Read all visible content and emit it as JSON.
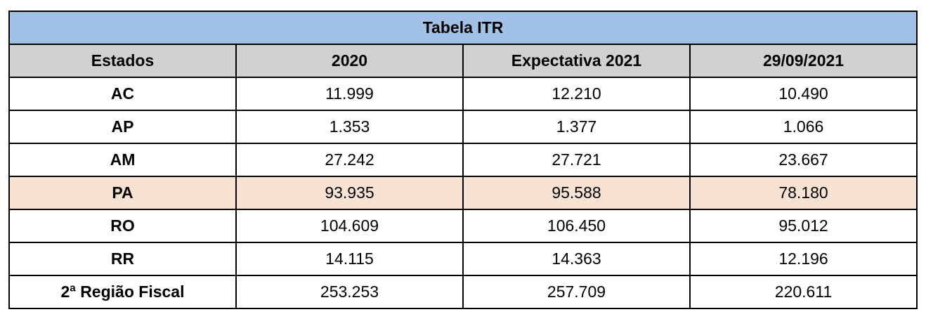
{
  "table": {
    "title": "Tabela ITR",
    "columns": [
      "Estados",
      "2020",
      "Expectativa 2021",
      "29/09/2021"
    ],
    "rows": [
      {
        "cells": [
          "AC",
          "11.999",
          "12.210",
          "10.490"
        ],
        "highlight": false
      },
      {
        "cells": [
          "AP",
          "1.353",
          "1.377",
          "1.066"
        ],
        "highlight": false
      },
      {
        "cells": [
          "AM",
          "27.242",
          "27.721",
          "23.667"
        ],
        "highlight": false
      },
      {
        "cells": [
          "PA",
          "93.935",
          "95.588",
          "78.180"
        ],
        "highlight": true
      },
      {
        "cells": [
          "RO",
          "104.609",
          "106.450",
          "95.012"
        ],
        "highlight": false
      },
      {
        "cells": [
          "RR",
          "14.115",
          "14.363",
          "12.196"
        ],
        "highlight": false
      },
      {
        "cells": [
          "2ª Região Fiscal",
          "253.253",
          "257.709",
          "220.611"
        ],
        "highlight": false
      }
    ]
  },
  "colors": {
    "title_bg": "#a2c1e6",
    "header_bg": "#d1d1d1",
    "highlight_bg": "#f8e3d3",
    "border": "#000000"
  },
  "chart_data": {
    "type": "table",
    "title": "Tabela ITR",
    "columns": [
      "Estados",
      "2020",
      "Expectativa 2021",
      "29/09/2021"
    ],
    "rows": [
      [
        "AC",
        11999,
        12210,
        10490
      ],
      [
        "AP",
        1353,
        1377,
        1066
      ],
      [
        "AM",
        27242,
        27721,
        23667
      ],
      [
        "PA",
        93935,
        95588,
        78180
      ],
      [
        "RO",
        104609,
        106450,
        95012
      ],
      [
        "RR",
        14115,
        14363,
        12196
      ],
      [
        "2ª Região Fiscal",
        253253,
        257709,
        220611
      ]
    ],
    "highlighted_row": "PA",
    "total_row": "2ª Região Fiscal",
    "number_format": "pt-BR thousands separator (.)"
  }
}
